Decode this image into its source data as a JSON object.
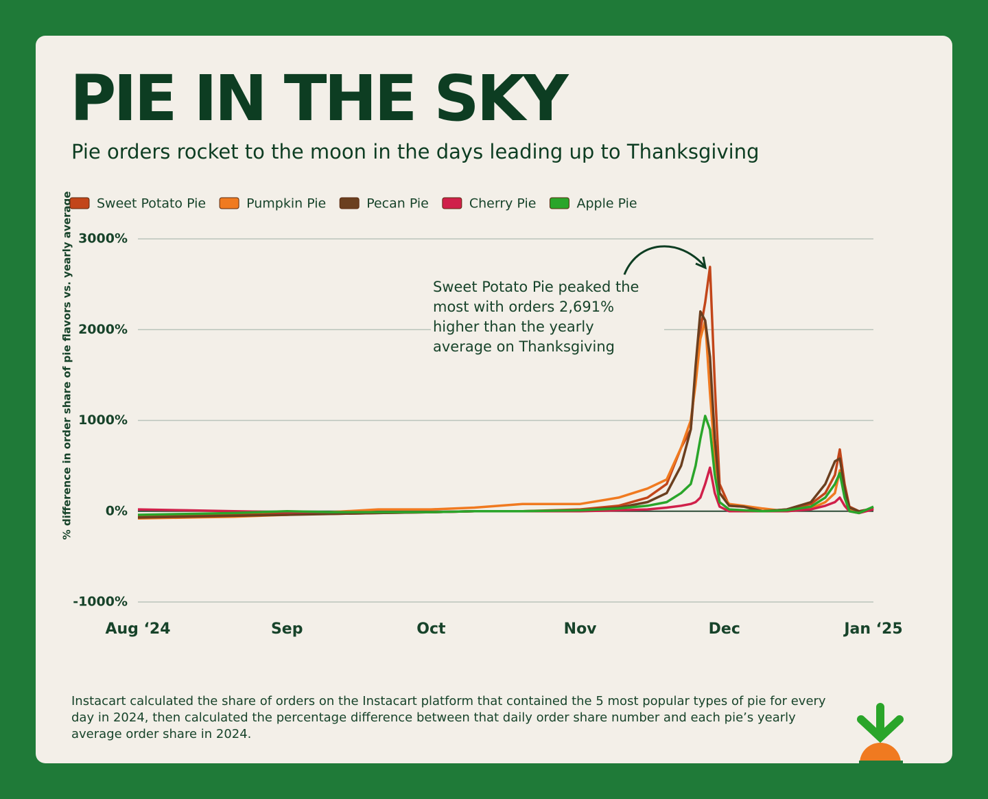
{
  "chart_data": {
    "type": "line",
    "title": "PIE IN THE SKY",
    "subtitle": "Pie orders rocket to the moon in the days leading up to Thanksgiving",
    "y_label": "% difference in order share of pie flavors vs. yearly average",
    "annotation": [
      "Sweet Potato Pie peaked the",
      "most with orders 2,691%",
      "higher than the yearly",
      "average on Thanksgiving"
    ],
    "footnote": "Instacart calculated the share of orders on the Instacart platform that contained the 5 most popular types of pie for every day in 2024, then calculated the percentage difference between that daily order share number and each pie’s yearly average order share in 2024.",
    "x": [
      0,
      10,
      20,
      31,
      40,
      50,
      61,
      70,
      80,
      92,
      100,
      106,
      110,
      113,
      115,
      116,
      117,
      118,
      119,
      120,
      121,
      123,
      126,
      130,
      135,
      140,
      143,
      145,
      146,
      147,
      148,
      150,
      153
    ],
    "xlim": [
      0,
      153
    ],
    "xticks": [
      {
        "value": 0,
        "label": "Aug ‘24"
      },
      {
        "value": 31,
        "label": "Sep"
      },
      {
        "value": 61,
        "label": "Oct"
      },
      {
        "value": 92,
        "label": "Nov"
      },
      {
        "value": 122,
        "label": "Dec"
      },
      {
        "value": 153,
        "label": "Jan ‘25"
      }
    ],
    "ylim": [
      -1000,
      3000
    ],
    "yticks": [
      {
        "value": -1000,
        "label": "-1000%"
      },
      {
        "value": 0,
        "label": "0%"
      },
      {
        "value": 1000,
        "label": "1000%"
      },
      {
        "value": 2000,
        "label": "2000%"
      },
      {
        "value": 3000,
        "label": "3000%"
      }
    ],
    "grid": true,
    "series": [
      {
        "name": "Sweet Potato Pie",
        "color": "#c2461a",
        "values": [
          -60,
          -50,
          -40,
          -30,
          -30,
          -20,
          -10,
          0,
          0,
          20,
          60,
          150,
          300,
          700,
          900,
          1500,
          2000,
          2300,
          2691,
          1400,
          300,
          60,
          50,
          0,
          20,
          80,
          200,
          400,
          680,
          300,
          50,
          0,
          30
        ]
      },
      {
        "name": "Pumpkin Pie",
        "color": "#f07a20",
        "values": [
          -80,
          -70,
          -60,
          -40,
          -10,
          20,
          20,
          40,
          80,
          80,
          150,
          250,
          350,
          700,
          1000,
          1400,
          1900,
          2100,
          1300,
          600,
          200,
          80,
          60,
          30,
          0,
          30,
          100,
          200,
          450,
          200,
          30,
          -20,
          40
        ]
      },
      {
        "name": "Pecan Pie",
        "color": "#6b3f1f",
        "values": [
          -70,
          -60,
          -50,
          -40,
          -30,
          -20,
          -10,
          0,
          0,
          10,
          40,
          100,
          200,
          500,
          900,
          1600,
          2200,
          2100,
          1700,
          800,
          200,
          60,
          50,
          0,
          20,
          100,
          300,
          550,
          580,
          250,
          40,
          0,
          30
        ]
      },
      {
        "name": "Cherry Pie",
        "color": "#d0204a",
        "values": [
          20,
          10,
          0,
          -10,
          -10,
          -10,
          -10,
          0,
          0,
          0,
          10,
          20,
          40,
          60,
          80,
          100,
          150,
          300,
          480,
          200,
          50,
          0,
          0,
          0,
          0,
          20,
          60,
          100,
          150,
          60,
          0,
          -20,
          20
        ]
      },
      {
        "name": "Apple Pie",
        "color": "#2aa52a",
        "values": [
          -40,
          -30,
          -20,
          0,
          -10,
          -10,
          -10,
          0,
          0,
          10,
          30,
          60,
          100,
          200,
          300,
          500,
          800,
          1050,
          900,
          400,
          100,
          20,
          10,
          0,
          10,
          50,
          150,
          300,
          420,
          150,
          0,
          -20,
          50
        ]
      }
    ]
  }
}
